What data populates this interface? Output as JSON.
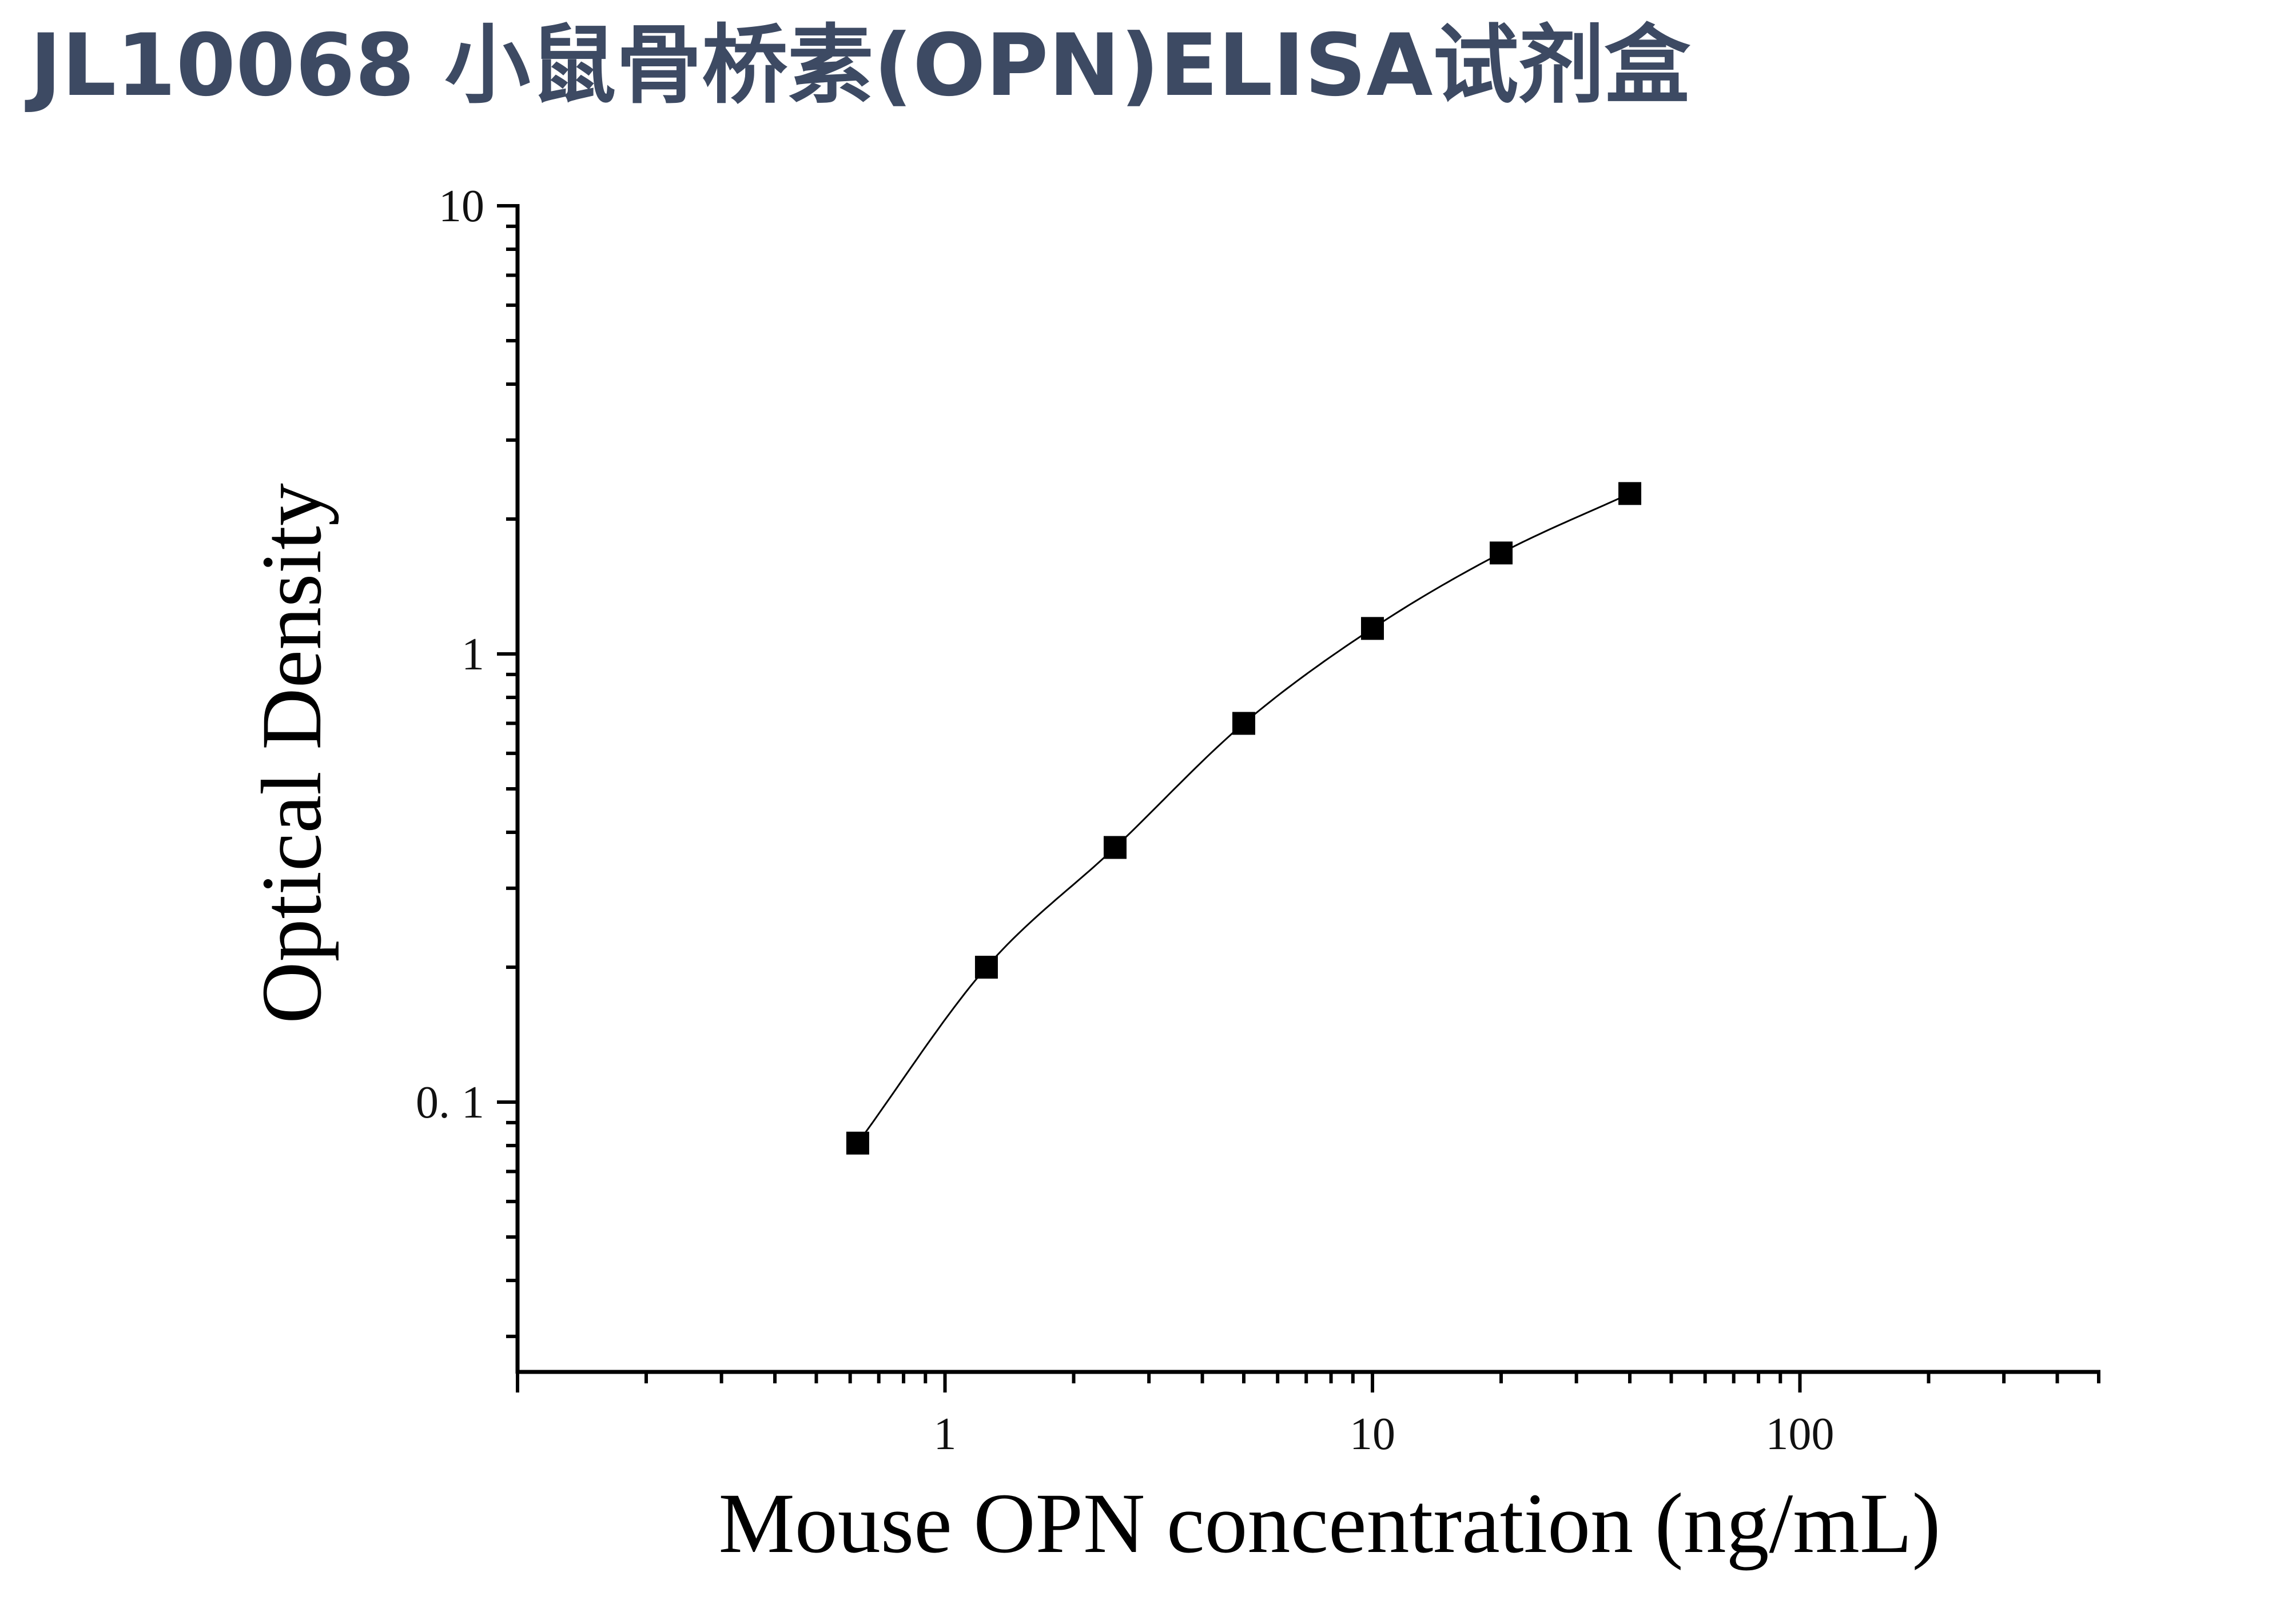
{
  "title": "JL10068 小鼠骨桥素(OPN)ELISA试剂盒",
  "chart_data": {
    "type": "scatter",
    "title": "",
    "xlabel": "Mouse OPN concentration (ng/mL)",
    "ylabel": "Optical Density",
    "x_scale": "log",
    "y_scale": "log",
    "xlim": [
      0.1,
      500
    ],
    "ylim": [
      0.025,
      10
    ],
    "x_ticks": [
      1,
      10,
      100
    ],
    "x_tick_labels": [
      "1",
      "10",
      "100"
    ],
    "y_ticks": [
      0.1,
      1,
      10
    ],
    "y_tick_labels": [
      "0. 1",
      "1",
      "10"
    ],
    "grid": false,
    "legend": "none",
    "marker": "square",
    "curve": "fitted",
    "series": [
      {
        "x": [
          0.625,
          1.25,
          2.5,
          5,
          10,
          20,
          40
        ],
        "y": [
          0.081,
          0.2,
          0.37,
          0.7,
          1.14,
          1.68,
          2.28
        ]
      }
    ]
  }
}
